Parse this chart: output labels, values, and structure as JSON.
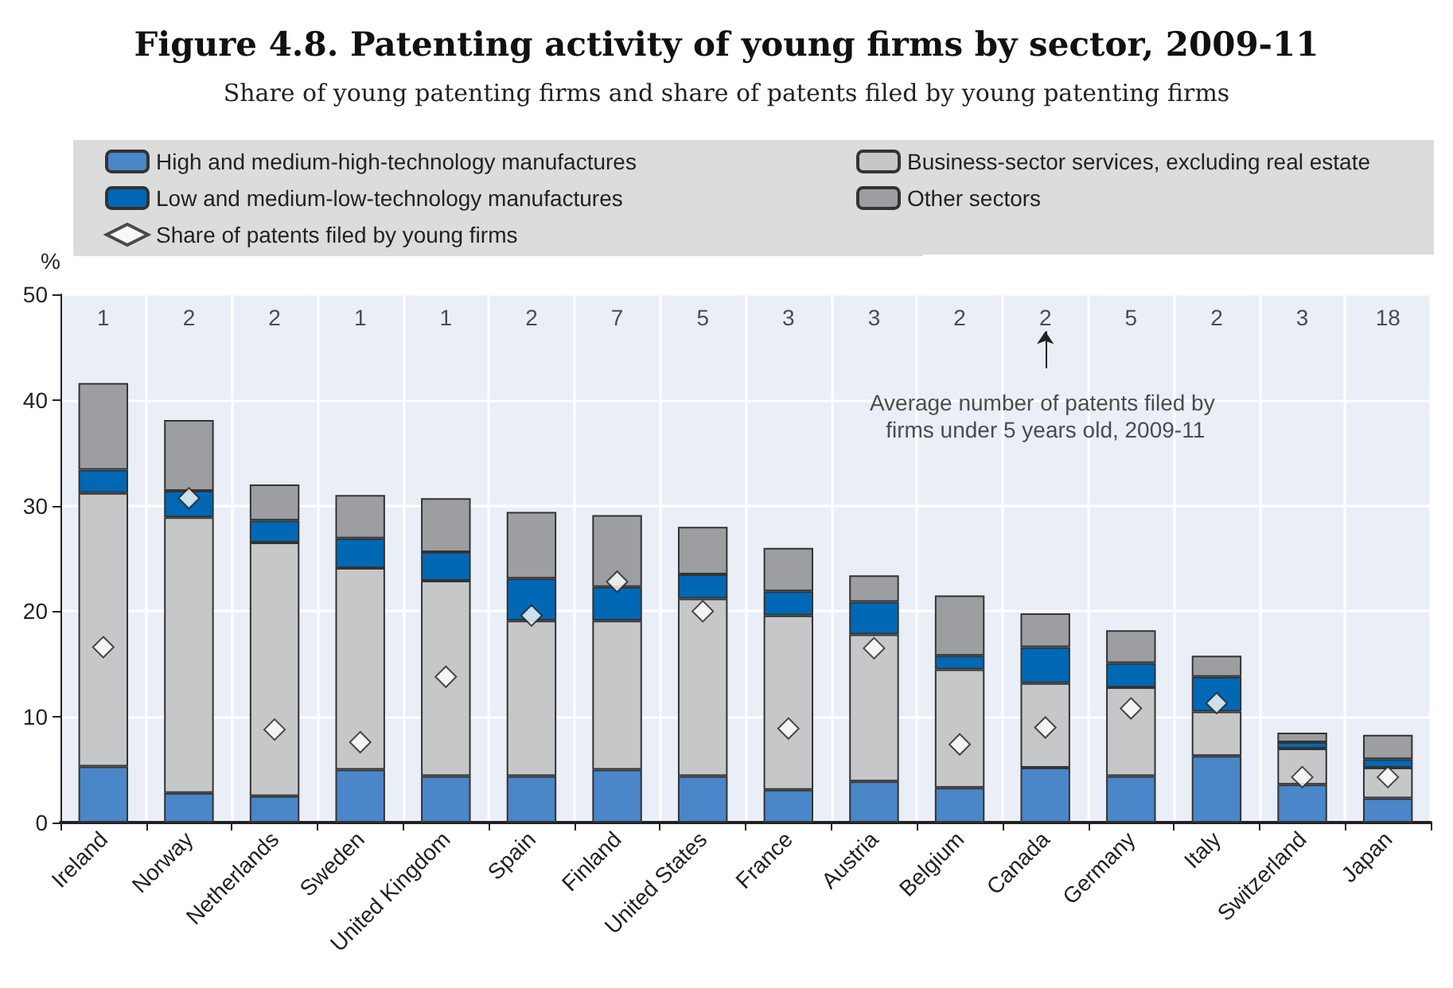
{
  "chart_data": {
    "type": "bar",
    "title": "Figure 4.8. Patenting activity of young firms by sector, 2009-11",
    "subtitle": "Share of young patenting firms and share of patents filed by young patenting firms",
    "ylabel": "%",
    "categories": [
      "Ireland",
      "Norway",
      "Netherlands",
      "Sweden",
      "United Kingdom",
      "Spain",
      "Finland",
      "United States",
      "France",
      "Austria",
      "Belgium",
      "Canada",
      "Germany",
      "Italy",
      "Switzerland",
      "Japan"
    ],
    "stacked": true,
    "series": [
      {
        "name": "High and medium-high-technology manufactures",
        "color": "#4a86c8",
        "values": [
          5.3,
          2.8,
          2.5,
          5.0,
          4.4,
          4.4,
          5.0,
          4.4,
          3.1,
          3.9,
          3.3,
          5.2,
          4.4,
          6.3,
          3.6,
          2.3
        ]
      },
      {
        "name": "Business-sector services, excluding real estate",
        "color": "#c6c7c9",
        "values": [
          25.9,
          26.1,
          24.0,
          19.1,
          18.5,
          14.7,
          14.1,
          16.8,
          16.5,
          13.9,
          11.2,
          8.0,
          8.4,
          4.2,
          3.4,
          2.9
        ]
      },
      {
        "name": "Low and medium-low-technology manufactures",
        "color": "#0068b5",
        "values": [
          2.2,
          2.5,
          2.1,
          2.8,
          2.7,
          4.0,
          3.2,
          2.3,
          2.3,
          3.1,
          1.3,
          3.4,
          2.3,
          3.3,
          0.6,
          0.8
        ]
      },
      {
        "name": "Other sectors",
        "color": "#9d9ea2",
        "values": [
          8.2,
          6.7,
          3.4,
          4.1,
          5.1,
          6.3,
          6.8,
          4.5,
          4.1,
          2.5,
          5.7,
          3.2,
          3.1,
          2.0,
          0.9,
          2.3
        ]
      },
      {
        "name": "Share of patents filed by young firms",
        "type": "scatter",
        "marker": "diamond",
        "color": "#ffffff",
        "x": [
          "Ireland",
          "Norway",
          "Netherlands",
          "Sweden",
          "United Kingdom",
          "Spain",
          "Finland",
          "United States",
          "France",
          "Austria",
          "Belgium",
          "Canada",
          "Germany",
          "Italy",
          "Switzerland",
          "Japan"
        ],
        "values": [
          16.6,
          30.7,
          8.8,
          7.6,
          13.8,
          19.6,
          22.8,
          20.0,
          8.9,
          16.5,
          7.4,
          9.0,
          10.8,
          11.3,
          4.3,
          4.3
        ]
      }
    ],
    "ylim": [
      0,
      50
    ],
    "yticks": [
      0,
      10,
      20,
      30,
      40,
      50
    ],
    "grid": true,
    "legend": "top",
    "annotations": [
      "1",
      "2",
      "2",
      "1",
      "1",
      "2",
      "7",
      "5",
      "3",
      "3",
      "2",
      "2",
      "5",
      "2",
      "3",
      "18",
      "Average number of patents filed by firms under 5 years old, 2009-11"
    ]
  }
}
